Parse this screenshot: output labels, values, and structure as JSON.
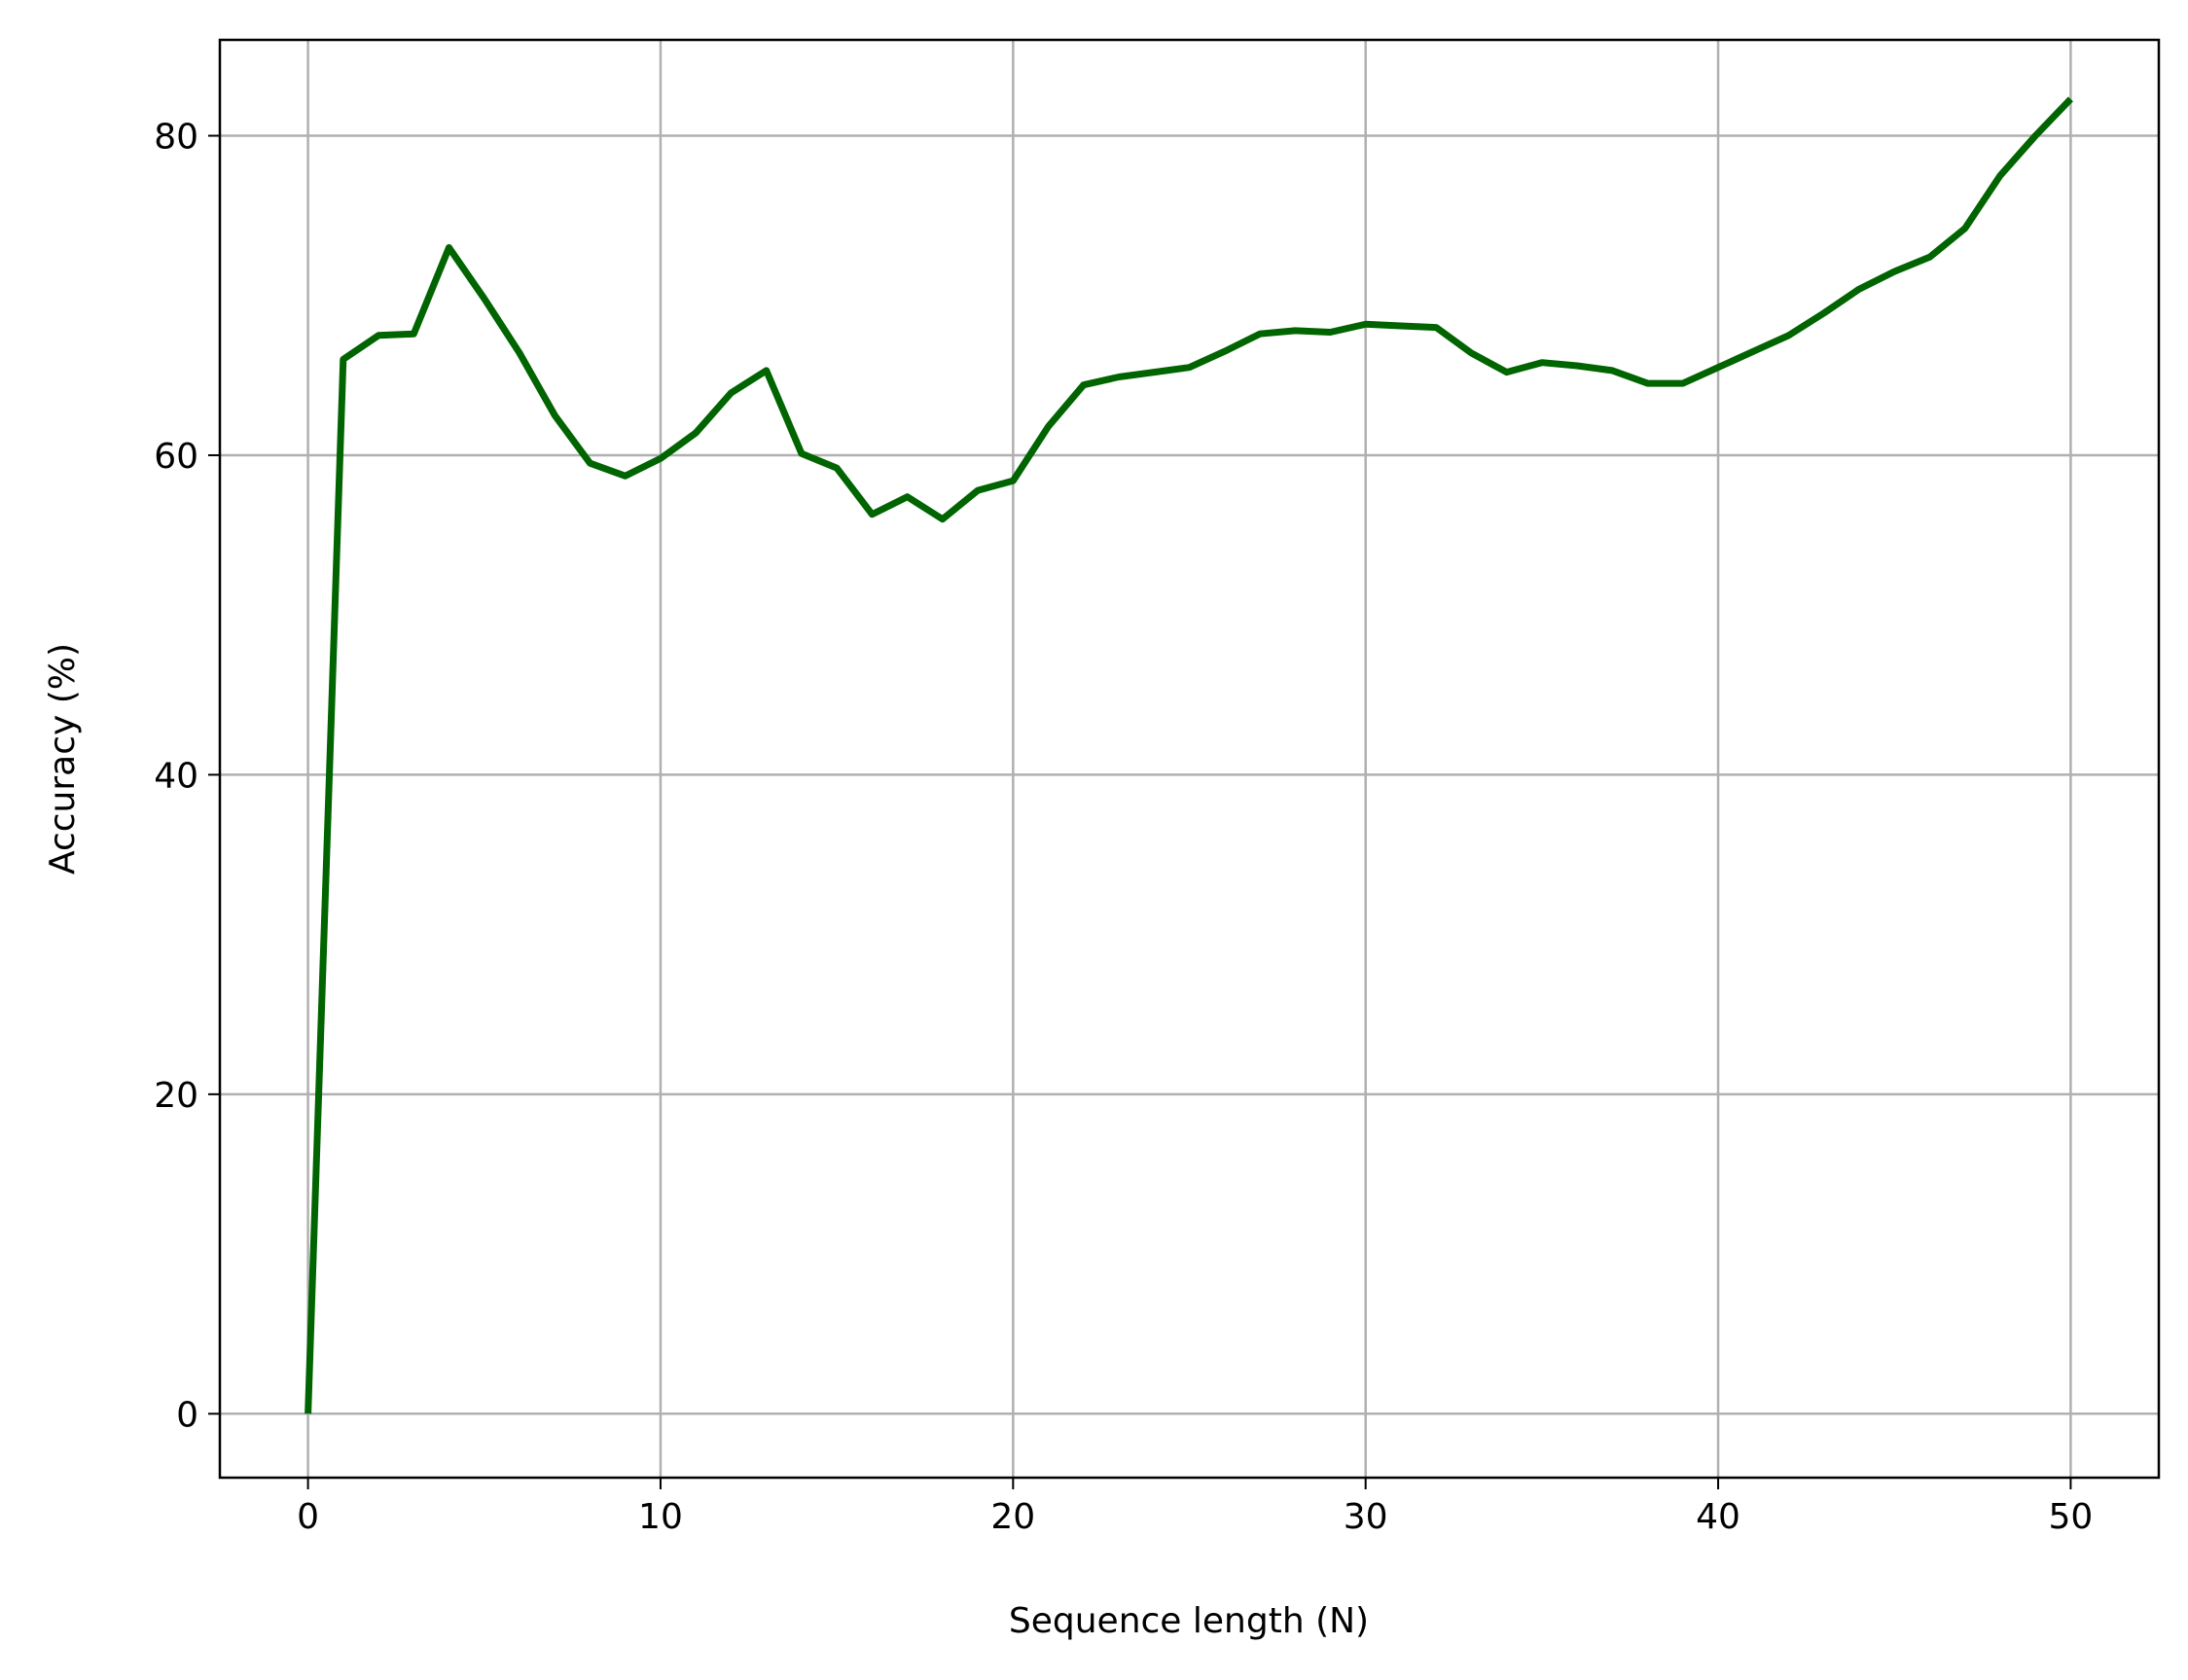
{
  "chart_data": {
    "type": "line",
    "title": "",
    "xlabel": "Sequence length (N)",
    "ylabel": "Accuracy (%)",
    "xlim": [
      -2.5,
      52.5
    ],
    "ylim": [
      -4,
      86
    ],
    "xticks": [
      0,
      10,
      20,
      30,
      40,
      50
    ],
    "yticks": [
      0,
      20,
      40,
      60,
      80
    ],
    "grid": true,
    "legend": "none",
    "series": [
      {
        "color": "#006400",
        "x": [
          0,
          1,
          2,
          3,
          4,
          5,
          6,
          7,
          8,
          9,
          10,
          11,
          12,
          13,
          14,
          15,
          16,
          17,
          18,
          19,
          20,
          21,
          22,
          23,
          24,
          25,
          26,
          27,
          28,
          29,
          30,
          31,
          32,
          33,
          34,
          35,
          36,
          37,
          38,
          39,
          40,
          41,
          42,
          43,
          44,
          45,
          46,
          47,
          48,
          49,
          50
        ],
        "y": [
          0,
          66,
          67.5,
          67.6,
          73,
          69.8,
          66.4,
          62.5,
          59.5,
          58.7,
          59.8,
          61.4,
          63.9,
          65.3,
          60.1,
          59.2,
          56.3,
          57.4,
          56,
          57.8,
          58.4,
          61.8,
          64.4,
          64.9,
          65.2,
          65.5,
          66.5,
          67.6,
          67.8,
          67.7,
          68.2,
          68.1,
          68,
          66.4,
          65.2,
          65.8,
          65.6,
          65.3,
          64.5,
          64.5,
          65.5,
          66.5,
          67.5,
          68.9,
          70.4,
          71.5,
          72.4,
          74.2,
          77.5,
          80,
          82.3
        ]
      }
    ]
  }
}
